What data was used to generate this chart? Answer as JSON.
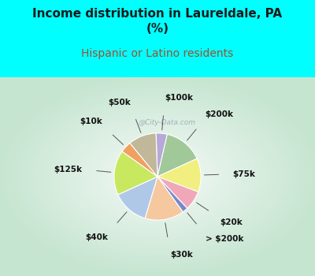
{
  "title": "Income distribution in Laureldale, PA\n(%)",
  "subtitle": "Hispanic or Latino residents",
  "background_color": "#00FFFF",
  "chart_bg_gradient": true,
  "labels": [
    "$100k",
    "$200k",
    "$75k",
    "$20k",
    "> $200k",
    "$30k",
    "$40k",
    "$125k",
    "$10k",
    "$50k"
  ],
  "sizes": [
    4,
    14,
    12,
    7,
    2,
    14,
    13,
    16,
    4,
    10
  ],
  "colors": [
    "#b8a8d8",
    "#a0c898",
    "#f0ef80",
    "#f0a8b8",
    "#7888cc",
    "#f5c8a0",
    "#b0c8e8",
    "#c8e860",
    "#f0a060",
    "#c0b898"
  ],
  "title_fontsize": 11,
  "subtitle_fontsize": 10,
  "subtitle_color": "#a05030",
  "watermark": "@City-Data.com"
}
